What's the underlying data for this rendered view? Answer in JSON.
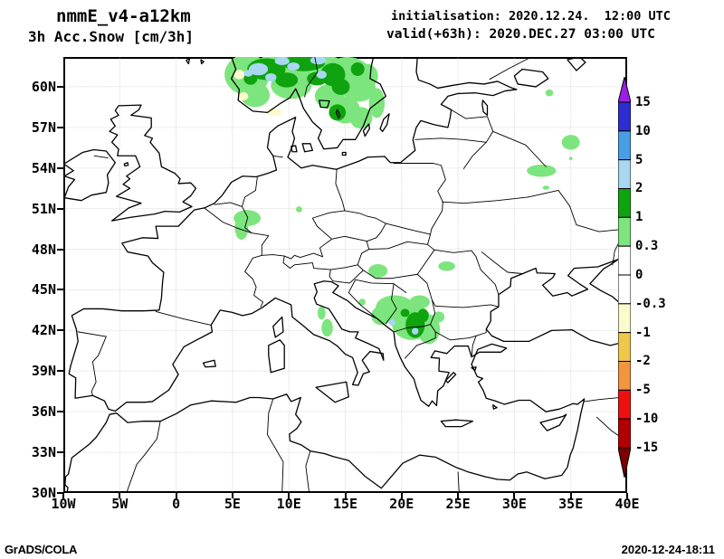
{
  "header": {
    "model": "nmmE_v4-a12km",
    "field": "3h Acc.Snow [cm/3h]",
    "init_line": "initialisation: 2020.12.24.  12:00 UTC",
    "valid_line": "valid(+63h): 2020.DEC.27 03:00 UTC"
  },
  "footer": {
    "credit": "GrADS/COLA",
    "timestamp": "2020-12-24-18:11"
  },
  "chart_data": {
    "type": "heatmap",
    "title": "3h Acc.Snow [cm/3h]",
    "model": "nmmE_v4-a12km",
    "initialisation": "2020.12.24. 12:00 UTC",
    "valid": "(+63h) 2020.DEC.27 03:00 UTC",
    "extent": {
      "lon_min": -10,
      "lon_max": 40,
      "lat_min": 30,
      "lat_max": 62.2
    },
    "grid": {
      "lon_step": 5,
      "lat_step": 3,
      "style": "dotted"
    },
    "lon_ticks": [
      {
        "value": -10,
        "label": "10W"
      },
      {
        "value": -5,
        "label": "5W"
      },
      {
        "value": 0,
        "label": "0"
      },
      {
        "value": 5,
        "label": "5E"
      },
      {
        "value": 10,
        "label": "10E"
      },
      {
        "value": 15,
        "label": "15E"
      },
      {
        "value": 20,
        "label": "20E"
      },
      {
        "value": 25,
        "label": "25E"
      },
      {
        "value": 30,
        "label": "30E"
      },
      {
        "value": 35,
        "label": "35E"
      },
      {
        "value": 40,
        "label": "40E"
      }
    ],
    "lat_ticks": [
      {
        "value": 30,
        "label": "30N"
      },
      {
        "value": 33,
        "label": "33N"
      },
      {
        "value": 36,
        "label": "36N"
      },
      {
        "value": 39,
        "label": "39N"
      },
      {
        "value": 42,
        "label": "42N"
      },
      {
        "value": 45,
        "label": "45N"
      },
      {
        "value": 48,
        "label": "48N"
      },
      {
        "value": 51,
        "label": "51N"
      },
      {
        "value": 54,
        "label": "54N"
      },
      {
        "value": 57,
        "label": "57N"
      },
      {
        "value": 60,
        "label": "60N"
      }
    ],
    "colorbar": {
      "labels": [
        "15",
        "10",
        "5",
        "2",
        "1",
        "0.3",
        "0",
        "-0.3",
        "-1",
        "-2",
        "-5",
        "-10",
        "-15"
      ],
      "segment_colors_top_to_bottom": [
        "#9a1fe6",
        "#2d2dd2",
        "#4a9ee6",
        "#a8d7f2",
        "#0fa30f",
        "#7de57d",
        "#ffffff",
        "#ffffff",
        "#fbfbce",
        "#eec84a",
        "#f2953f",
        "#ee0f0f",
        "#b20000",
        "#7d0000"
      ]
    },
    "bands": {
      "0.3-1": "#7de57d",
      "1-2": "#0fa30f",
      "2-5": "#a8d7f2",
      "-1--0.3": "#fbfbce"
    },
    "patch_format": [
      "lon",
      "lat",
      "rx_deg",
      "ry_deg",
      "band"
    ],
    "snow_patches": [
      [
        6.3,
        60.9,
        2.0,
        1.5,
        "0.3-1"
      ],
      [
        9.5,
        61.4,
        2.6,
        1.1,
        "0.3-1"
      ],
      [
        12.5,
        61.4,
        2.6,
        1.0,
        "0.3-1"
      ],
      [
        15.2,
        61.0,
        2.0,
        1.2,
        "0.3-1"
      ],
      [
        16.2,
        59.9,
        1.5,
        1.0,
        "0.3-1"
      ],
      [
        7.0,
        59.4,
        1.3,
        0.9,
        "0.3-1"
      ],
      [
        10.2,
        60.1,
        1.8,
        1.0,
        "0.3-1"
      ],
      [
        13.6,
        59.3,
        1.3,
        0.9,
        "0.3-1"
      ],
      [
        15.0,
        58.3,
        1.3,
        1.0,
        "0.3-1"
      ],
      [
        16.4,
        57.7,
        1.0,
        0.8,
        "0.3-1"
      ],
      [
        17.8,
        58.8,
        0.7,
        1.1,
        "0.3-1"
      ],
      [
        16.9,
        60.8,
        1.0,
        0.9,
        "0.3-1"
      ],
      [
        33.1,
        59.55,
        0.35,
        0.25,
        "0.3-1"
      ],
      [
        35.0,
        55.9,
        0.8,
        0.55,
        "0.3-1"
      ],
      [
        32.4,
        53.8,
        1.3,
        0.45,
        "0.3-1"
      ],
      [
        32.8,
        52.55,
        0.3,
        0.15,
        "0.3-1"
      ],
      [
        35.0,
        54.7,
        0.15,
        0.12,
        "0.3-1"
      ],
      [
        10.9,
        50.95,
        0.28,
        0.22,
        "0.3-1"
      ],
      [
        6.3,
        50.3,
        1.2,
        0.6,
        "0.3-1"
      ],
      [
        5.8,
        49.6,
        0.6,
        0.9,
        "0.3-1"
      ],
      [
        17.9,
        46.4,
        0.85,
        0.5,
        "0.3-1"
      ],
      [
        24.0,
        46.75,
        0.75,
        0.35,
        "0.3-1"
      ],
      [
        12.9,
        43.3,
        0.35,
        0.5,
        "0.3-1"
      ],
      [
        13.4,
        42.2,
        0.5,
        0.65,
        "0.3-1"
      ],
      [
        19.4,
        43.7,
        1.7,
        0.9,
        "0.3-1"
      ],
      [
        18.2,
        43.1,
        0.9,
        0.7,
        "0.3-1"
      ],
      [
        20.9,
        42.6,
        1.8,
        1.3,
        "0.3-1"
      ],
      [
        22.4,
        42.1,
        1.0,
        1.1,
        "0.3-1"
      ],
      [
        21.6,
        44.1,
        0.9,
        0.5,
        "0.3-1"
      ],
      [
        23.3,
        43.0,
        0.5,
        0.4,
        "0.3-1"
      ],
      [
        16.5,
        44.1,
        0.3,
        0.25,
        "0.3-1"
      ],
      [
        5.6,
        60.9,
        0.5,
        0.35,
        "-1--0.3"
      ],
      [
        6.0,
        59.3,
        0.4,
        0.3,
        "-1--0.3"
      ],
      [
        8.7,
        58.15,
        0.7,
        0.3,
        "-1--0.3"
      ],
      [
        8.0,
        61.3,
        1.7,
        0.8,
        "1-2"
      ],
      [
        11.3,
        61.75,
        1.9,
        0.6,
        "1-2"
      ],
      [
        13.9,
        60.9,
        1.1,
        0.85,
        "1-2"
      ],
      [
        9.8,
        60.5,
        1.0,
        0.55,
        "1-2"
      ],
      [
        14.6,
        60.0,
        0.8,
        0.6,
        "1-2"
      ],
      [
        12.5,
        60.6,
        0.9,
        0.5,
        "1-2"
      ],
      [
        6.6,
        60.6,
        0.6,
        0.45,
        "1-2"
      ],
      [
        14.3,
        58.1,
        0.75,
        0.6,
        "1-2"
      ],
      [
        16.1,
        61.3,
        0.6,
        0.5,
        "1-2"
      ],
      [
        21.2,
        42.4,
        0.85,
        0.95,
        "1-2"
      ],
      [
        21.9,
        43.1,
        0.5,
        0.5,
        "1-2"
      ],
      [
        20.3,
        43.3,
        0.4,
        0.3,
        "1-2"
      ],
      [
        7.3,
        61.3,
        0.85,
        0.45,
        "2-5"
      ],
      [
        9.4,
        61.9,
        0.65,
        0.3,
        "2-5"
      ],
      [
        12.6,
        61.95,
        0.7,
        0.3,
        "2-5"
      ],
      [
        8.4,
        60.7,
        0.5,
        0.3,
        "2-5"
      ],
      [
        12.9,
        60.9,
        0.45,
        0.3,
        "2-5"
      ],
      [
        10.4,
        61.5,
        0.55,
        0.3,
        "2-5"
      ],
      [
        6.4,
        61.0,
        0.4,
        0.25,
        "2-5"
      ],
      [
        19.15,
        42.6,
        0.3,
        0.25,
        "2-5"
      ],
      [
        21.2,
        41.95,
        0.3,
        0.25,
        "2-5"
      ]
    ]
  }
}
